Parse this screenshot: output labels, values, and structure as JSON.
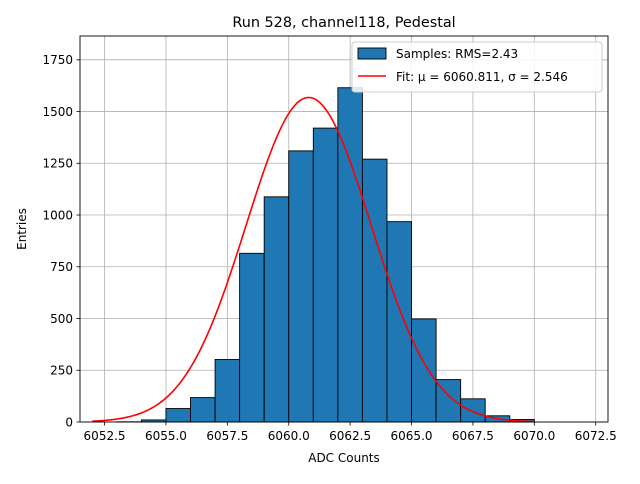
{
  "chart_data": {
    "type": "bar",
    "title": "Run 528, channel118, Pedestal",
    "xlabel": "ADC Counts",
    "ylabel": "Entries",
    "xlim": [
      6051.5,
      6073.0
    ],
    "ylim": [
      0,
      1865
    ],
    "grid": true,
    "legend_position": "top-right",
    "x_ticks": [
      6052.5,
      6055.0,
      6057.5,
      6060.0,
      6062.5,
      6065.0,
      6067.5,
      6070.0,
      6072.5
    ],
    "x_tick_labels": [
      "6052.5",
      "6055.0",
      "6057.5",
      "6060.0",
      "6062.5",
      "6065.0",
      "6067.5",
      "6070.0",
      "6072.5"
    ],
    "y_ticks": [
      0,
      250,
      500,
      750,
      1000,
      1250,
      1500,
      1750
    ],
    "y_tick_labels": [
      "0",
      "250",
      "500",
      "750",
      "1000",
      "1250",
      "1500",
      "1750"
    ],
    "series": [
      {
        "name": "Samples",
        "legend_label": "Samples: RMS=2.43",
        "kind": "histogram",
        "color": "#1f77b4",
        "edge_color": "#000000",
        "bin_edges": [
          6053,
          6054,
          6055,
          6056,
          6057,
          6058,
          6059,
          6060,
          6061,
          6062,
          6063,
          6064,
          6065,
          6066,
          6067,
          6068,
          6069,
          6070
        ],
        "values": [
          1,
          10,
          65,
          118,
          302,
          815,
          1088,
          1310,
          1420,
          1615,
          1270,
          968,
          498,
          205,
          112,
          30,
          12
        ]
      },
      {
        "name": "Fit",
        "legend_label": "Fit: μ = 6060.811, σ = 2.546",
        "kind": "gaussian-line",
        "color": "#ff0000",
        "mu": 6060.811,
        "sigma": 2.546,
        "amplitude": 1568,
        "x_range": [
          6052,
          6070
        ]
      }
    ]
  }
}
